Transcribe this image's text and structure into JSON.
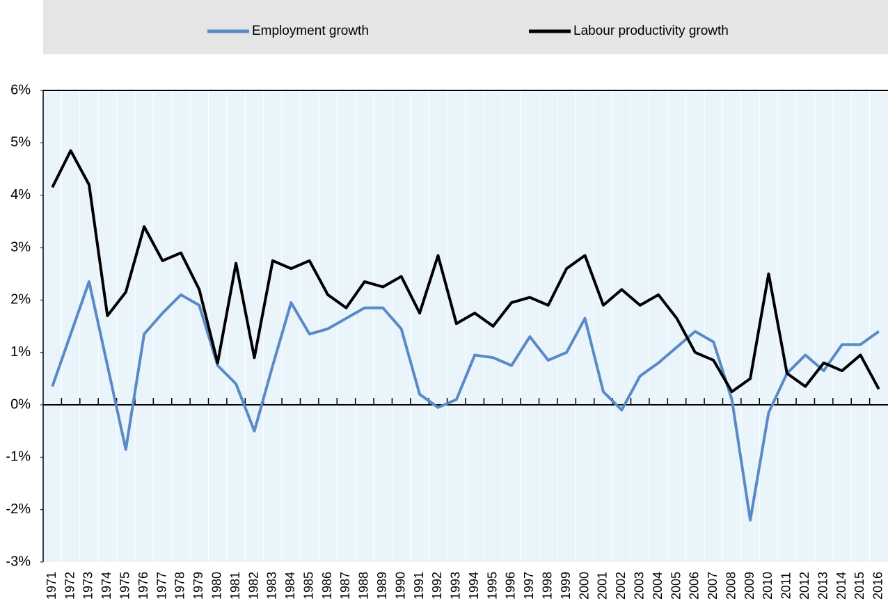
{
  "chart_data": {
    "type": "line",
    "categories": [
      "1971",
      "1972",
      "1973",
      "1974",
      "1975",
      "1976",
      "1977",
      "1978",
      "1979",
      "1980",
      "1981",
      "1982",
      "1983",
      "1984",
      "1985",
      "1986",
      "1987",
      "1988",
      "1989",
      "1990",
      "1991",
      "1992",
      "1993",
      "1994",
      "1995",
      "1996",
      "1997",
      "1998",
      "1999",
      "2000",
      "2001",
      "2002",
      "2003",
      "2004",
      "2005",
      "2006",
      "2007",
      "2008",
      "2009",
      "2010",
      "2011",
      "2012",
      "2013",
      "2014",
      "2015",
      "2016"
    ],
    "series": [
      {
        "name": "Employment growth",
        "color": "#5a8ac6",
        "values": [
          0.35,
          1.35,
          2.35,
          0.75,
          -0.85,
          1.35,
          1.75,
          2.1,
          1.9,
          0.75,
          0.4,
          -0.5,
          0.75,
          1.95,
          1.35,
          1.45,
          1.65,
          1.85,
          1.85,
          1.45,
          0.2,
          -0.05,
          0.1,
          0.95,
          0.9,
          0.75,
          1.3,
          0.85,
          1.0,
          1.65,
          0.25,
          -0.1,
          0.55,
          0.8,
          1.1,
          1.4,
          1.2,
          0.1,
          -2.2,
          -0.15,
          0.6,
          0.95,
          0.65,
          1.15,
          1.15,
          1.4
        ]
      },
      {
        "name": "Labour productivity growth",
        "color": "#000000",
        "values": [
          4.15,
          4.85,
          4.2,
          1.7,
          2.15,
          3.4,
          2.75,
          2.9,
          2.2,
          0.8,
          2.7,
          0.9,
          2.75,
          2.6,
          2.75,
          2.1,
          1.85,
          2.35,
          2.25,
          2.45,
          1.75,
          2.85,
          1.55,
          1.75,
          1.5,
          1.95,
          2.05,
          1.9,
          2.6,
          2.85,
          1.9,
          2.2,
          1.9,
          2.1,
          1.65,
          1.0,
          0.85,
          0.25,
          0.5,
          2.5,
          0.6,
          0.35,
          0.8,
          0.65,
          0.95,
          0.3
        ]
      }
    ],
    "ylim": [
      -3,
      6
    ],
    "yticks": [
      {
        "value": -3,
        "label": "-3%"
      },
      {
        "value": -2,
        "label": "-2%"
      },
      {
        "value": -1,
        "label": "-1%"
      },
      {
        "value": 0,
        "label": "0%"
      },
      {
        "value": 1,
        "label": "1%"
      },
      {
        "value": 2,
        "label": "2%"
      },
      {
        "value": 3,
        "label": "3%"
      },
      {
        "value": 4,
        "label": "4%"
      },
      {
        "value": 5,
        "label": "5%"
      },
      {
        "value": 6,
        "label": "6%"
      }
    ],
    "grid": true,
    "legend": "top"
  }
}
